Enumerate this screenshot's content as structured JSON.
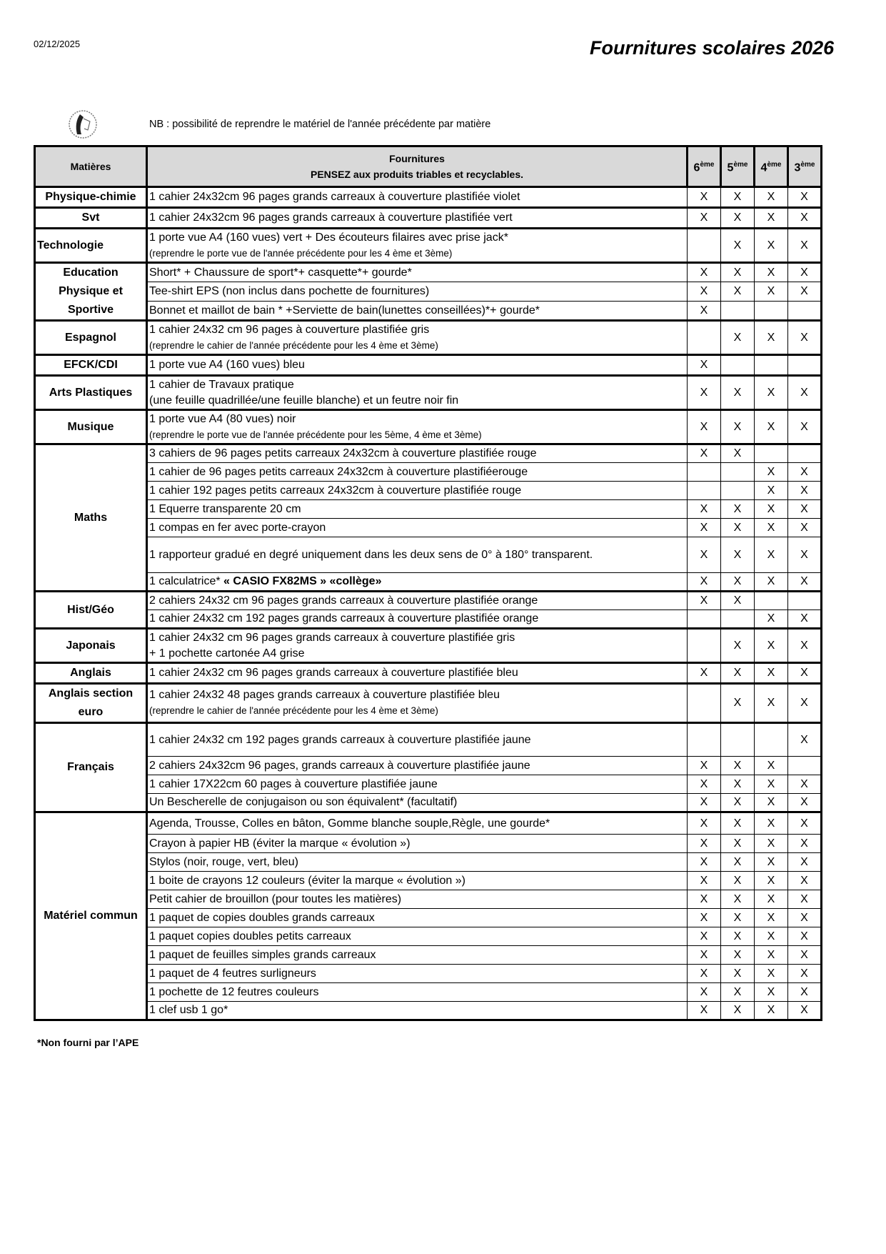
{
  "header": {
    "date": "02/12/2025",
    "title": "Fournitures scolaires 2026",
    "nb": "NB : possibilité de reprendre le matériel de l'année précédente par matière"
  },
  "table": {
    "col_subject": "Matières",
    "col_items_1": "Fournitures",
    "col_items_2": "PENSEZ aux produits triables et recyclables.",
    "levels": [
      {
        "num": "6",
        "sup": "ème"
      },
      {
        "num": "5",
        "sup": "ème"
      },
      {
        "num": "4",
        "sup": "ème"
      },
      {
        "num": "3",
        "sup": "ème"
      }
    ],
    "subjects": [
      {
        "name": "Physique-chimie",
        "rows": [
          {
            "text": "1 cahier 24x32cm 96 pages grands carreaux  à couverture plastifiée violet",
            "marks": [
              "X",
              "X",
              "X",
              "X"
            ]
          }
        ]
      },
      {
        "name": "Svt",
        "rows": [
          {
            "text": "1 cahier 24x32cm 96 pages grands carreaux à couverture plastifiée vert",
            "marks": [
              "X",
              "X",
              "X",
              "X"
            ]
          }
        ]
      },
      {
        "name": "Technologie",
        "rows": [
          {
            "text": "1 porte vue A4 (160 vues) vert + Des écouteurs filaires avec prise jack*",
            "note": "(reprendre le porte vue de l'année précédente pour les 4 ème et 3ème)",
            "marks": [
              "",
              "X",
              "X",
              "X"
            ]
          }
        ]
      },
      {
        "name": "Education Physique et Sportive",
        "rows": [
          {
            "text": "Short* + Chaussure de sport*+ casquette*+ gourde*",
            "marks": [
              "X",
              "X",
              "X",
              "X"
            ]
          },
          {
            "text": "Tee-shirt EPS (non inclus dans pochette de fournitures)",
            "marks": [
              "X",
              "X",
              "X",
              "X"
            ]
          },
          {
            "text": "Bonnet et maillot de bain * +Serviette de bain(lunettes conseillées)*+ gourde*",
            "marks": [
              "X",
              "",
              "",
              ""
            ]
          }
        ]
      },
      {
        "name": "Espagnol",
        "rows": [
          {
            "text": "1 cahier 24x32 cm 96 pages à couverture plastifiée gris",
            "note": "(reprendre le cahier de l'année précédente  pour les 4 ème et 3ème)",
            "marks": [
              "",
              "X",
              "X",
              "X"
            ]
          }
        ]
      },
      {
        "name": "EFCK/CDI",
        "rows": [
          {
            "text": "1 porte vue A4 (160 vues) bleu",
            "marks": [
              "X",
              "",
              "",
              ""
            ]
          }
        ]
      },
      {
        "name": "Arts Plastiques",
        "rows": [
          {
            "text": "1 cahier de Travaux pratique",
            "note": "(une feuille quadrillée/une feuille blanche) et un feutre noir fin",
            "note_large": true,
            "marks": [
              "X",
              "X",
              "X",
              "X"
            ]
          }
        ]
      },
      {
        "name": "Musique",
        "rows": [
          {
            "text": "1 porte vue A4 (80 vues) noir",
            "note": "(reprendre le porte vue de l'année précédente pour les 5ème, 4 ème et 3ème)",
            "marks": [
              "X",
              "X",
              "X",
              "X"
            ]
          }
        ]
      },
      {
        "name": "Maths",
        "rows": [
          {
            "text": "3 cahiers de 96 pages petits carreaux 24x32cm à couverture plastifiée rouge",
            "marks": [
              "X",
              "X",
              "",
              ""
            ]
          },
          {
            "text": "1 cahier de 96 pages petits carreaux 24x32cm à couverture plastifiéerouge",
            "marks": [
              "",
              "",
              "X",
              "X"
            ]
          },
          {
            "text": "1 cahier 192 pages petits carreaux 24x32cm à couverture plastifiée rouge",
            "marks": [
              "",
              "",
              "X",
              "X"
            ]
          },
          {
            "text": "1 Equerre transparente 20 cm",
            "marks": [
              "X",
              "X",
              "X",
              "X"
            ]
          },
          {
            "text": "1 compas en fer avec porte-crayon",
            "marks": [
              "X",
              "X",
              "X",
              "X"
            ]
          },
          {
            "text": "1 rapporteur gradué en degré uniquement dans les deux sens de 0° à 180° transparent.",
            "marks": [
              "X",
              "X",
              "X",
              "X"
            ]
          },
          {
            "text": "1 calculatrice* ",
            "bold": "« CASIO  FX82MS » «collège»",
            "marks": [
              "X",
              "X",
              "X",
              "X"
            ]
          }
        ]
      },
      {
        "name": "Hist/Géo",
        "rows": [
          {
            "text": "2 cahiers 24x32 cm 96 pages grands carreaux  à couverture plastifiée orange",
            "marks": [
              "X",
              "X",
              "",
              ""
            ]
          },
          {
            "text": "1 cahier 24x32 cm 192 pages grands carreaux  à couverture plastifiée orange",
            "marks": [
              "",
              "",
              "X",
              "X"
            ]
          }
        ]
      },
      {
        "name": "Japonais",
        "rows": [
          {
            "text": "1 cahier 24x32 cm  96 pages grands carreaux  à couverture plastifiée gris",
            "note": "+ 1 pochette cartonée A4 grise",
            "note_large": true,
            "marks": [
              "",
              "X",
              "X",
              "X"
            ]
          }
        ]
      },
      {
        "name": "Anglais",
        "rows": [
          {
            "text": "1 cahier 24x32 cm 96 pages grands carreaux  à couverture plastifiée bleu",
            "marks": [
              "X",
              "X",
              "X",
              "X"
            ]
          }
        ]
      },
      {
        "name": "Anglais section euro",
        "rows": [
          {
            "text": "1 cahier 24x32 48 pages grands carreaux  à couverture plastifiée bleu",
            "note": "(reprendre le cahier de l'année précédente  pour les 4 ème et 3ème)",
            "marks": [
              "",
              "X",
              "X",
              "X"
            ]
          }
        ]
      },
      {
        "name": "Français",
        "rows": [
          {
            "text": "1 cahier 24x32 cm 192 pages grands carreaux  à couverture plastifiée jaune",
            "marks": [
              "",
              "",
              "",
              "X"
            ]
          },
          {
            "text": "2 cahiers 24x32cm 96 pages, grands carreaux à couverture plastifiée jaune",
            "marks": [
              "X",
              "X",
              "X",
              ""
            ]
          },
          {
            "text": "1 cahier 17X22cm 60 pages à couverture plastifiée jaune",
            "marks": [
              "X",
              "X",
              "X",
              "X"
            ]
          },
          {
            "text": "Un Bescherelle de conjugaison ou son équivalent* (facultatif)",
            "marks": [
              "X",
              "X",
              "X",
              "X"
            ]
          }
        ]
      },
      {
        "name": "Matériel commun",
        "rows": [
          {
            "text": "Agenda, Trousse, Colles en bâton, Gomme blanche souple,Règle, une gourde*",
            "marks": [
              "X",
              "X",
              "X",
              "X"
            ]
          },
          {
            "text": "Crayon à papier HB (éviter la marque « évolution »)",
            "marks": [
              "X",
              "X",
              "X",
              "X"
            ]
          },
          {
            "text": "Stylos (noir, rouge, vert, bleu)",
            "marks": [
              "X",
              "X",
              "X",
              "X"
            ]
          },
          {
            "text": "1 boite de crayons 12 couleurs (éviter la marque « évolution »)",
            "marks": [
              "X",
              "X",
              "X",
              "X"
            ]
          },
          {
            "text": "Petit cahier de brouillon (pour toutes les matières)",
            "marks": [
              "X",
              "X",
              "X",
              "X"
            ]
          },
          {
            "text": "1 paquet de copies doubles grands carreaux",
            "marks": [
              "X",
              "X",
              "X",
              "X"
            ]
          },
          {
            "text": "1 paquet copies doubles petits carreaux",
            "marks": [
              "X",
              "X",
              "X",
              "X"
            ]
          },
          {
            "text": "1 paquet de feuilles simples grands carreaux",
            "marks": [
              "X",
              "X",
              "X",
              "X"
            ]
          },
          {
            "text": "1 paquet de 4 feutres surligneurs",
            "marks": [
              "X",
              "X",
              "X",
              "X"
            ]
          },
          {
            "text": "1 pochette de 12 feutres couleurs",
            "marks": [
              "X",
              "X",
              "X",
              "X"
            ]
          },
          {
            "text": "1 clef usb 1 go*",
            "marks": [
              "X",
              "X",
              "X",
              "X"
            ]
          }
        ]
      }
    ]
  },
  "footnote": "*Non fourni par l’APE"
}
